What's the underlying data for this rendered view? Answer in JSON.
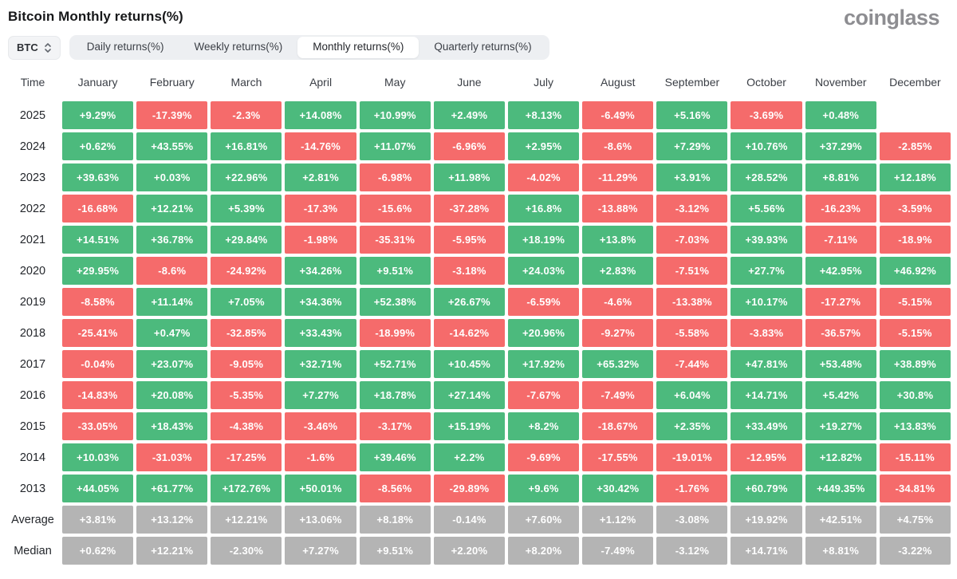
{
  "header": {
    "title": "Bitcoin Monthly returns(%)",
    "brand": "coinglass"
  },
  "controls": {
    "symbol": {
      "label": "BTC",
      "icon": "sort-arrows-icon"
    },
    "tabs": [
      {
        "label": "Daily returns(%)",
        "active": false
      },
      {
        "label": "Weekly returns(%)",
        "active": false
      },
      {
        "label": "Monthly returns(%)",
        "active": true
      },
      {
        "label": "Quarterly returns(%)",
        "active": false
      }
    ]
  },
  "colors": {
    "positive": "#4cba7d",
    "negative": "#f56b6b",
    "neutral": "#b4b4b4",
    "tab_bar_bg": "#edeff2",
    "active_tab_bg": "#ffffff"
  },
  "chart_data": {
    "type": "heatmap",
    "title": "Bitcoin Monthly returns(%)",
    "columns": [
      "Time",
      "January",
      "February",
      "March",
      "April",
      "May",
      "June",
      "July",
      "August",
      "September",
      "October",
      "November",
      "December"
    ],
    "rows": [
      {
        "label": "2025",
        "neutral": false,
        "values": [
          "+9.29%",
          "-17.39%",
          "-2.3%",
          "+14.08%",
          "+10.99%",
          "+2.49%",
          "+8.13%",
          "-6.49%",
          "+5.16%",
          "-3.69%",
          "+0.48%",
          null
        ]
      },
      {
        "label": "2024",
        "neutral": false,
        "values": [
          "+0.62%",
          "+43.55%",
          "+16.81%",
          "-14.76%",
          "+11.07%",
          "-6.96%",
          "+2.95%",
          "-8.6%",
          "+7.29%",
          "+10.76%",
          "+37.29%",
          "-2.85%"
        ]
      },
      {
        "label": "2023",
        "neutral": false,
        "values": [
          "+39.63%",
          "+0.03%",
          "+22.96%",
          "+2.81%",
          "-6.98%",
          "+11.98%",
          "-4.02%",
          "-11.29%",
          "+3.91%",
          "+28.52%",
          "+8.81%",
          "+12.18%"
        ]
      },
      {
        "label": "2022",
        "neutral": false,
        "values": [
          "-16.68%",
          "+12.21%",
          "+5.39%",
          "-17.3%",
          "-15.6%",
          "-37.28%",
          "+16.8%",
          "-13.88%",
          "-3.12%",
          "+5.56%",
          "-16.23%",
          "-3.59%"
        ]
      },
      {
        "label": "2021",
        "neutral": false,
        "values": [
          "+14.51%",
          "+36.78%",
          "+29.84%",
          "-1.98%",
          "-35.31%",
          "-5.95%",
          "+18.19%",
          "+13.8%",
          "-7.03%",
          "+39.93%",
          "-7.11%",
          "-18.9%"
        ]
      },
      {
        "label": "2020",
        "neutral": false,
        "values": [
          "+29.95%",
          "-8.6%",
          "-24.92%",
          "+34.26%",
          "+9.51%",
          "-3.18%",
          "+24.03%",
          "+2.83%",
          "-7.51%",
          "+27.7%",
          "+42.95%",
          "+46.92%"
        ]
      },
      {
        "label": "2019",
        "neutral": false,
        "values": [
          "-8.58%",
          "+11.14%",
          "+7.05%",
          "+34.36%",
          "+52.38%",
          "+26.67%",
          "-6.59%",
          "-4.6%",
          "-13.38%",
          "+10.17%",
          "-17.27%",
          "-5.15%"
        ]
      },
      {
        "label": "2018",
        "neutral": false,
        "values": [
          "-25.41%",
          "+0.47%",
          "-32.85%",
          "+33.43%",
          "-18.99%",
          "-14.62%",
          "+20.96%",
          "-9.27%",
          "-5.58%",
          "-3.83%",
          "-36.57%",
          "-5.15%"
        ]
      },
      {
        "label": "2017",
        "neutral": false,
        "values": [
          "-0.04%",
          "+23.07%",
          "-9.05%",
          "+32.71%",
          "+52.71%",
          "+10.45%",
          "+17.92%",
          "+65.32%",
          "-7.44%",
          "+47.81%",
          "+53.48%",
          "+38.89%"
        ]
      },
      {
        "label": "2016",
        "neutral": false,
        "values": [
          "-14.83%",
          "+20.08%",
          "-5.35%",
          "+7.27%",
          "+18.78%",
          "+27.14%",
          "-7.67%",
          "-7.49%",
          "+6.04%",
          "+14.71%",
          "+5.42%",
          "+30.8%"
        ]
      },
      {
        "label": "2015",
        "neutral": false,
        "values": [
          "-33.05%",
          "+18.43%",
          "-4.38%",
          "-3.46%",
          "-3.17%",
          "+15.19%",
          "+8.2%",
          "-18.67%",
          "+2.35%",
          "+33.49%",
          "+19.27%",
          "+13.83%"
        ]
      },
      {
        "label": "2014",
        "neutral": false,
        "values": [
          "+10.03%",
          "-31.03%",
          "-17.25%",
          "-1.6%",
          "+39.46%",
          "+2.2%",
          "-9.69%",
          "-17.55%",
          "-19.01%",
          "-12.95%",
          "+12.82%",
          "-15.11%"
        ]
      },
      {
        "label": "2013",
        "neutral": false,
        "values": [
          "+44.05%",
          "+61.77%",
          "+172.76%",
          "+50.01%",
          "-8.56%",
          "-29.89%",
          "+9.6%",
          "+30.42%",
          "-1.76%",
          "+60.79%",
          "+449.35%",
          "-34.81%"
        ]
      },
      {
        "label": "Average",
        "neutral": true,
        "values": [
          "+3.81%",
          "+13.12%",
          "+12.21%",
          "+13.06%",
          "+8.18%",
          "-0.14%",
          "+7.60%",
          "+1.12%",
          "-3.08%",
          "+19.92%",
          "+42.51%",
          "+4.75%"
        ]
      },
      {
        "label": "Median",
        "neutral": true,
        "values": [
          "+0.62%",
          "+12.21%",
          "-2.30%",
          "+7.27%",
          "+9.51%",
          "+2.20%",
          "+8.20%",
          "-7.49%",
          "-3.12%",
          "+14.71%",
          "+8.81%",
          "-3.22%"
        ]
      }
    ]
  }
}
